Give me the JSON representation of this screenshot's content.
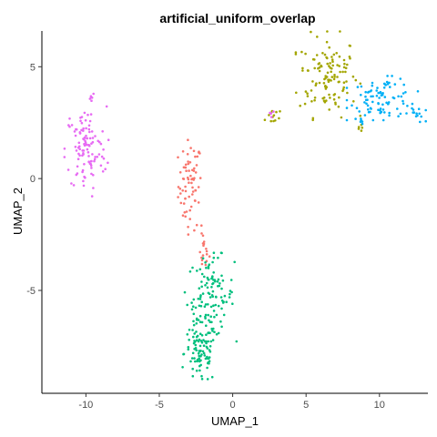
{
  "chart_data": {
    "type": "scatter",
    "title": "artificial_uniform_overlap",
    "xlabel": "UMAP_1",
    "ylabel": "UMAP_2",
    "xlim": [
      -13,
      13.3
    ],
    "ylim": [
      -9.6,
      6.6
    ],
    "xticks": [
      -10,
      -5,
      0,
      5,
      10
    ],
    "yticks": [
      -5,
      0,
      5
    ],
    "grid": false,
    "legend": "none",
    "series": [
      {
        "color": "#F8766D",
        "clusters": [
          {
            "cx": -2.9,
            "cy": -0.3,
            "sx": 0.4,
            "sy": 1.0,
            "n": 70
          },
          {
            "cx": -2.0,
            "cy": -3.2,
            "sx": 0.2,
            "sy": 0.5,
            "n": 18
          }
        ]
      },
      {
        "color": "#A3A500",
        "clusters": [
          {
            "cx": 6.5,
            "cy": 4.6,
            "sx": 1.0,
            "sy": 0.9,
            "n": 120
          },
          {
            "cx": 2.7,
            "cy": 2.8,
            "sx": 0.25,
            "sy": 0.25,
            "n": 12
          },
          {
            "cx": 8.6,
            "cy": 2.3,
            "sx": 0.1,
            "sy": 0.1,
            "n": 5
          }
        ]
      },
      {
        "color": "#00BF7D",
        "clusters": [
          {
            "cx": -1.5,
            "cy": -5.3,
            "sx": 0.8,
            "sy": 0.9,
            "n": 120
          },
          {
            "cx": -2.2,
            "cy": -7.8,
            "sx": 0.55,
            "sy": 0.7,
            "n": 90
          }
        ]
      },
      {
        "color": "#00B0F6",
        "clusters": [
          {
            "cx": 10.2,
            "cy": 3.6,
            "sx": 1.1,
            "sy": 0.45,
            "n": 90
          },
          {
            "cx": 12.5,
            "cy": 2.9,
            "sx": 0.3,
            "sy": 0.2,
            "n": 15
          },
          {
            "cx": 8.7,
            "cy": 2.5,
            "sx": 0.1,
            "sy": 0.1,
            "n": 4
          }
        ]
      },
      {
        "color": "#E76BF3",
        "clusters": [
          {
            "cx": -10.0,
            "cy": 1.3,
            "sx": 0.7,
            "sy": 0.95,
            "n": 110
          },
          {
            "cx": -9.6,
            "cy": 3.7,
            "sx": 0.1,
            "sy": 0.1,
            "n": 6
          },
          {
            "cx": 2.6,
            "cy": 2.9,
            "sx": 0.12,
            "sy": 0.12,
            "n": 5
          }
        ]
      }
    ]
  }
}
